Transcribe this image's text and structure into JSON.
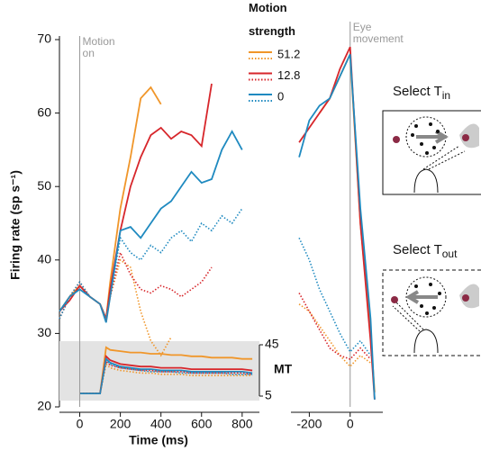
{
  "chart_data": {
    "type": "line",
    "ylabel": "Firing rate (sp s⁻¹)",
    "xlabel": "Time (ms)",
    "ylim": [
      20,
      70
    ],
    "yticks": [
      20,
      30,
      40,
      50,
      60,
      70
    ],
    "legend_title": "Motion strength",
    "panels": [
      {
        "annotation": "Motion on",
        "xlim": [
          -100,
          885
        ],
        "xticks": [
          0,
          200,
          400,
          600,
          800
        ],
        "x": [
          -100,
          -50,
          0,
          50,
          100,
          130,
          150,
          200,
          250,
          300,
          350,
          400,
          450,
          500,
          550,
          600,
          650,
          700,
          750,
          800,
          850
        ],
        "series": [
          {
            "name": "51.2",
            "color": "#f0962a",
            "style": "solid",
            "values": [
              33,
              35,
              36.5,
              35,
              34,
              32,
              37,
              47,
              54,
              62,
              63.5,
              61.2,
              null,
              null,
              null,
              null,
              null,
              null,
              null,
              null,
              null
            ]
          },
          {
            "name": "12.8",
            "color": "#d7262b",
            "style": "solid",
            "values": [
              33,
              34.5,
              36.5,
              35,
              34,
              32,
              36,
              44,
              50,
              54,
              57,
              58,
              56.5,
              57.5,
              57,
              55.5,
              64,
              null,
              null,
              null,
              null
            ]
          },
          {
            "name": "0",
            "color": "#1f8ac0",
            "style": "solid",
            "values": [
              33,
              35,
              36,
              35,
              34,
              31.5,
              35,
              44,
              44.5,
              43,
              45,
              47,
              48,
              50,
              52,
              50.5,
              51,
              55,
              57.5,
              55,
              null
            ]
          },
          {
            "name": "51.2",
            "color": "#f0962a",
            "style": "dotted",
            "values": [
              32,
              35,
              37,
              35,
              34,
              32,
              35,
              40,
              39,
              33,
              29,
              27,
              29.5,
              null,
              null,
              null,
              null,
              null,
              null,
              null,
              null
            ]
          },
          {
            "name": "12.8",
            "color": "#d7262b",
            "style": "dotted",
            "values": [
              32,
              35,
              37,
              35,
              34,
              32,
              35,
              41,
              38,
              36,
              35.5,
              36.5,
              36,
              35,
              36,
              37,
              39,
              null,
              null,
              null,
              null
            ]
          },
          {
            "name": "0",
            "color": "#1f8ac0",
            "style": "dotted",
            "values": [
              32,
              35,
              37,
              35,
              34,
              32,
              35,
              43,
              41,
              40,
              42,
              41,
              43,
              44,
              42.5,
              45,
              44,
              46,
              45,
              47,
              null
            ]
          }
        ],
        "mt": {
          "label": "MT",
          "ylim": [
            5,
            45
          ],
          "yticks": [
            5,
            45
          ],
          "series": [
            {
              "name": "51.2",
              "color": "#f0962a",
              "style": "solid",
              "values": [
                null,
                null,
                7,
                7,
                7,
                43,
                41,
                40,
                39,
                39,
                38,
                38,
                37,
                37,
                36,
                36,
                35,
                35,
                35,
                34,
                34
              ]
            },
            {
              "name": "12.8",
              "color": "#d7262b",
              "style": "solid",
              "values": [
                null,
                null,
                7,
                7,
                7,
                36,
                33,
                30,
                29,
                28,
                28,
                27,
                27,
                27,
                26,
                26,
                26,
                26,
                26,
                26,
                25
              ]
            },
            {
              "name": "0",
              "color": "#1f8ac0",
              "style": "solid",
              "values": [
                null,
                null,
                7,
                7,
                7,
                34,
                31,
                28,
                27,
                26,
                26,
                25,
                25,
                25,
                24,
                24,
                24,
                24,
                24,
                24,
                23
              ]
            },
            {
              "name": "51.2",
              "color": "#f0962a",
              "style": "dotted",
              "values": [
                null,
                null,
                7,
                7,
                7,
                30,
                27,
                25,
                24,
                23,
                23,
                22,
                22,
                22,
                21,
                21,
                21,
                21,
                21,
                21,
                21
              ]
            },
            {
              "name": "12.8",
              "color": "#d7262b",
              "style": "dotted",
              "values": [
                null,
                null,
                7,
                7,
                7,
                32,
                29,
                27,
                26,
                25,
                25,
                24,
                24,
                24,
                23,
                23,
                23,
                23,
                23,
                23,
                22
              ]
            },
            {
              "name": "0",
              "color": "#1f8ac0",
              "style": "dotted",
              "values": [
                null,
                null,
                7,
                7,
                7,
                33,
                30,
                27,
                26,
                25,
                24,
                24,
                24,
                23,
                23,
                23,
                23,
                23,
                22,
                22,
                22
              ]
            }
          ]
        }
      },
      {
        "annotation": "Eye movement",
        "xlim": [
          -290,
          160
        ],
        "xticks": [
          -200,
          0
        ],
        "x": [
          -300,
          -250,
          -200,
          -150,
          -100,
          -50,
          0,
          50,
          100,
          120
        ],
        "series": [
          {
            "name": "51.2",
            "color": "#f0962a",
            "style": "solid",
            "values": [
              null,
              null,
              null,
              60,
              62,
              65,
              68,
              45,
              30,
              22
            ]
          },
          {
            "name": "12.8",
            "color": "#d7262b",
            "style": "solid",
            "values": [
              null,
              56,
              58,
              60,
              62,
              66,
              69,
              45,
              29,
              21
            ]
          },
          {
            "name": "0",
            "color": "#1f8ac0",
            "style": "solid",
            "values": [
              null,
              54,
              59,
              61,
              62,
              65,
              68,
              47,
              32,
              21
            ]
          },
          {
            "name": "51.2",
            "color": "#f0962a",
            "style": "dotted",
            "values": [
              null,
              34,
              33,
              31,
              29,
              27,
              25.5,
              27,
              26,
              null
            ]
          },
          {
            "name": "12.8",
            "color": "#d7262b",
            "style": "dotted",
            "values": [
              null,
              35.5,
              33,
              30.5,
              28,
              27,
              26.5,
              28,
              26.5,
              null
            ]
          },
          {
            "name": "0",
            "color": "#1f8ac0",
            "style": "dotted",
            "values": [
              null,
              43,
              40,
              36,
              33,
              30,
              27.5,
              29,
              27,
              null
            ]
          }
        ]
      }
    ],
    "insets": [
      {
        "label": "Select T",
        "sub": "in"
      },
      {
        "label": "Select T",
        "sub": "out"
      }
    ]
  }
}
